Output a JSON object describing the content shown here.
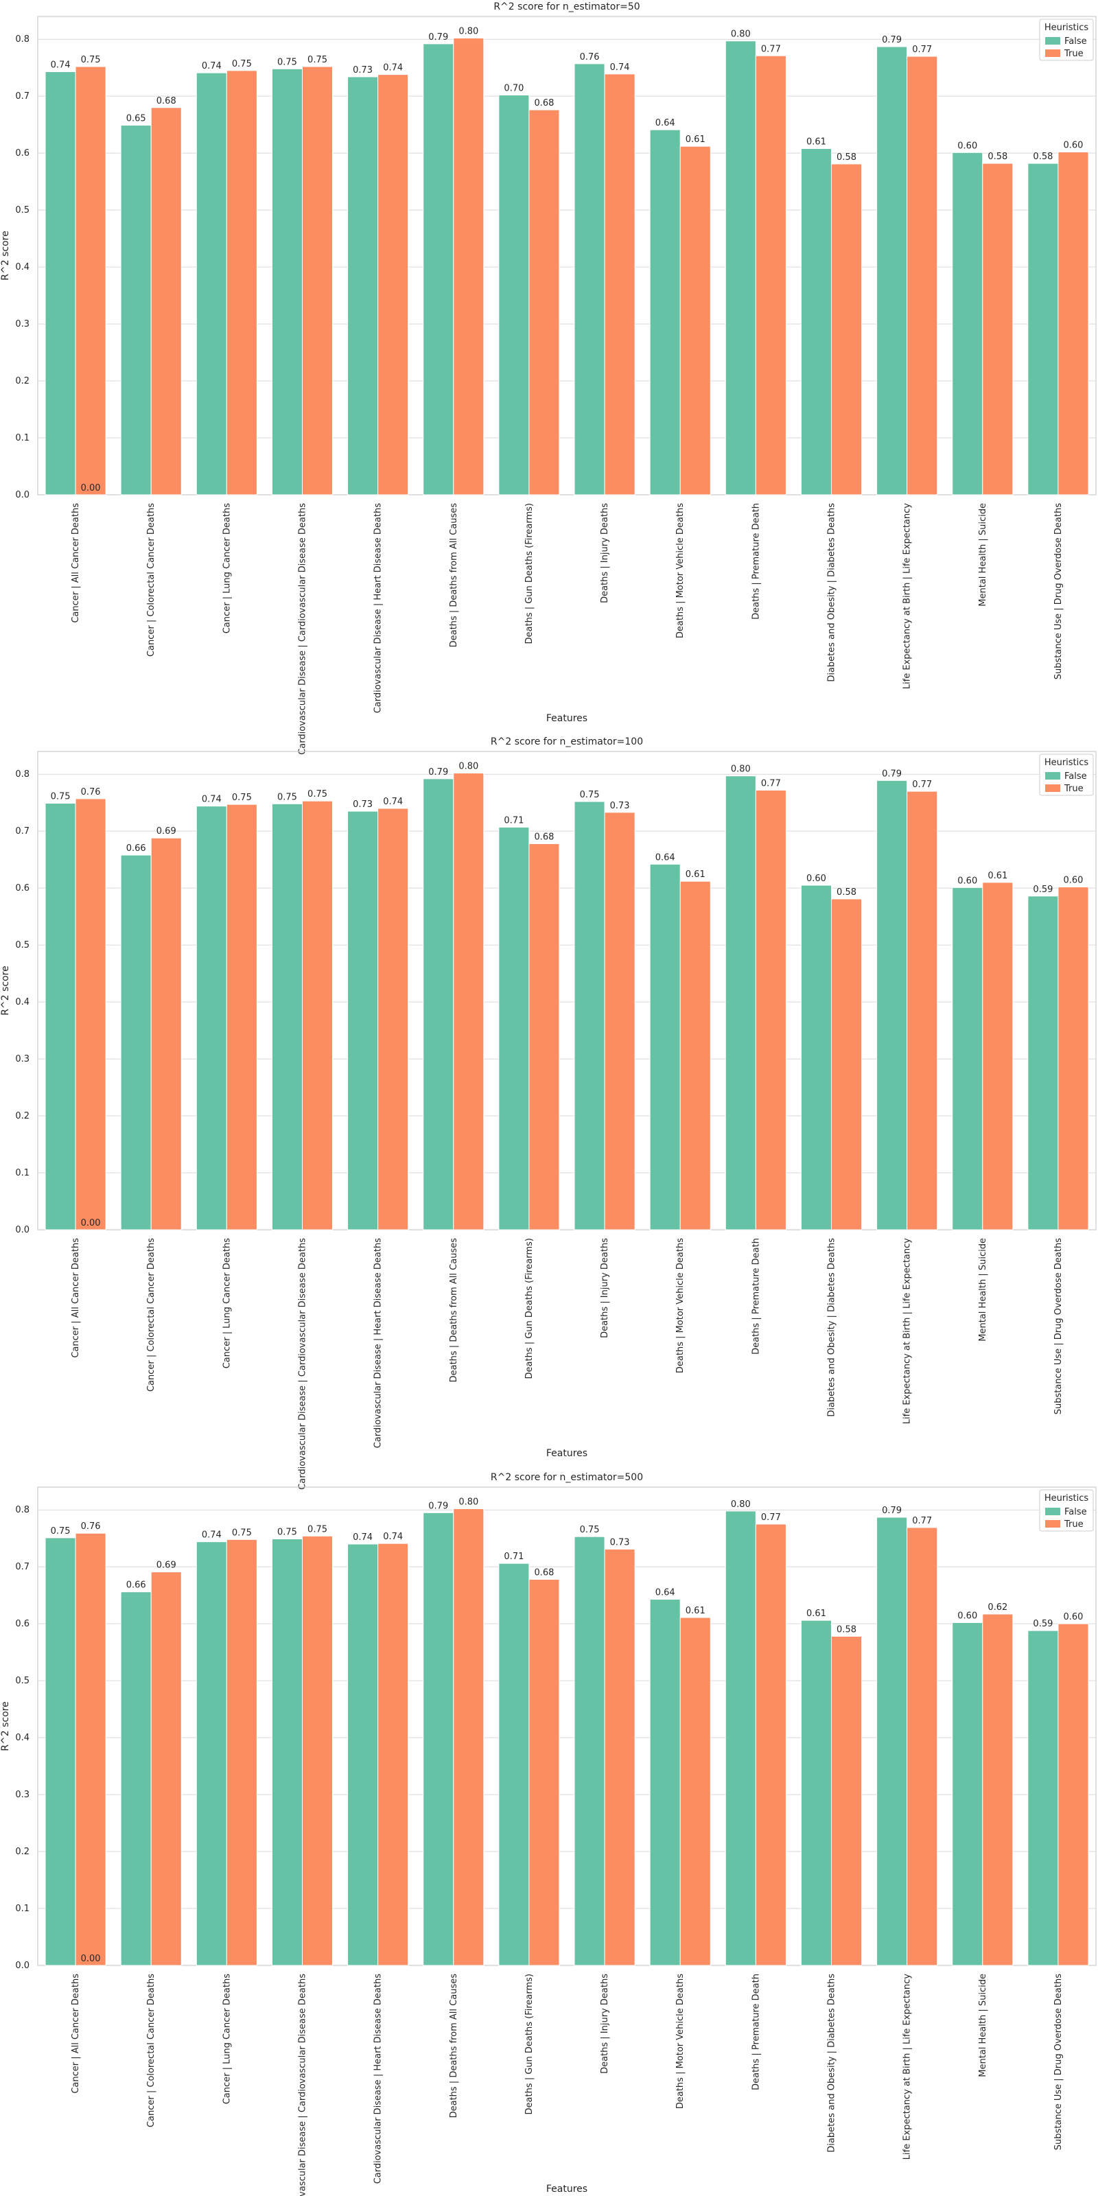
{
  "colors": {
    "False": "#66c2a5",
    "True": "#fc8d62",
    "grid": "#d9d9d9",
    "frame": "#cccccc"
  },
  "chart_data": [
    {
      "type": "bar",
      "title": "R^2 score for n_estimator=50",
      "xlabel": "Features",
      "ylabel": "R^2 score",
      "ylim": [
        0,
        0.84
      ],
      "yticks": [
        "0.0",
        "0.1",
        "0.2",
        "0.3",
        "0.4",
        "0.5",
        "0.6",
        "0.7",
        "0.8"
      ],
      "grid": true,
      "legend": {
        "title": "Heuristics",
        "placement": "top-right"
      },
      "categories": [
        "Cancer | All Cancer Deaths",
        "Cancer | Colorectal Cancer Deaths",
        "Cancer | Lung Cancer Deaths",
        "Cardiovascular Disease | Cardiovascular Disease Deaths",
        "Cardiovascular Disease | Heart Disease Deaths",
        "Deaths | Deaths from All Causes",
        "Deaths | Gun Deaths (Firearms)",
        "Deaths | Injury Deaths",
        "Deaths | Motor Vehicle Deaths",
        "Deaths | Premature Death",
        "Diabetes and Obesity | Diabetes Deaths",
        "Life Expectancy at Birth | Life Expectancy",
        "Mental Health | Suicide",
        "Substance Use | Drug Overdose Deaths"
      ],
      "series": [
        {
          "name": "False",
          "values": [
            0.743,
            0.649,
            0.741,
            0.748,
            0.734,
            0.792,
            0.702,
            0.757,
            0.641,
            0.797,
            0.608,
            0.787,
            0.601,
            0.582
          ],
          "labels": [
            "0.74",
            "0.65",
            "0.74",
            "0.75",
            "0.73",
            "0.79",
            "0.70",
            "0.76",
            "0.64",
            "0.80",
            "0.61",
            "0.79",
            "0.60",
            "0.58"
          ]
        },
        {
          "name": "True",
          "values": [
            0.752,
            0.68,
            0.745,
            0.752,
            0.738,
            0.802,
            0.676,
            0.739,
            0.612,
            0.771,
            0.581,
            0.77,
            0.582,
            0.602
          ],
          "labels": [
            "0.75",
            "0.68",
            "0.75",
            "0.75",
            "0.74",
            "0.80",
            "0.68",
            "0.74",
            "0.61",
            "0.77",
            "0.58",
            "0.77",
            "0.58",
            "0.60"
          ]
        }
      ],
      "extra_labels": [
        "0.00"
      ]
    },
    {
      "type": "bar",
      "title": "R^2 score for n_estimator=100",
      "xlabel": "Features",
      "ylabel": "R^2 score",
      "ylim": [
        0,
        0.84
      ],
      "yticks": [
        "0.0",
        "0.1",
        "0.2",
        "0.3",
        "0.4",
        "0.5",
        "0.6",
        "0.7",
        "0.8"
      ],
      "grid": true,
      "legend": {
        "title": "Heuristics",
        "placement": "top-right"
      },
      "categories": [
        "Cancer | All Cancer Deaths",
        "Cancer | Colorectal Cancer Deaths",
        "Cancer | Lung Cancer Deaths",
        "Cardiovascular Disease | Cardiovascular Disease Deaths",
        "Cardiovascular Disease | Heart Disease Deaths",
        "Deaths | Deaths from All Causes",
        "Deaths | Gun Deaths (Firearms)",
        "Deaths | Injury Deaths",
        "Deaths | Motor Vehicle Deaths",
        "Deaths | Premature Death",
        "Diabetes and Obesity | Diabetes Deaths",
        "Life Expectancy at Birth | Life Expectancy",
        "Mental Health | Suicide",
        "Substance Use | Drug Overdose Deaths"
      ],
      "series": [
        {
          "name": "False",
          "values": [
            0.749,
            0.658,
            0.744,
            0.748,
            0.735,
            0.792,
            0.707,
            0.752,
            0.642,
            0.797,
            0.605,
            0.789,
            0.601,
            0.586
          ],
          "labels": [
            "0.75",
            "0.66",
            "0.74",
            "0.75",
            "0.73",
            "0.79",
            "0.71",
            "0.75",
            "0.64",
            "0.80",
            "0.60",
            "0.79",
            "0.60",
            "0.59"
          ]
        },
        {
          "name": "True",
          "values": [
            0.757,
            0.688,
            0.747,
            0.753,
            0.74,
            0.802,
            0.678,
            0.733,
            0.612,
            0.772,
            0.581,
            0.77,
            0.61,
            0.602
          ],
          "labels": [
            "0.76",
            "0.69",
            "0.75",
            "0.75",
            "0.74",
            "0.80",
            "0.68",
            "0.73",
            "0.61",
            "0.77",
            "0.58",
            "0.77",
            "0.61",
            "0.60"
          ]
        }
      ],
      "extra_labels": [
        "0.00"
      ]
    },
    {
      "type": "bar",
      "title": "R^2 score for n_estimator=500",
      "xlabel": "Features",
      "ylabel": "R^2 score",
      "ylim": [
        0,
        0.84
      ],
      "yticks": [
        "0.0",
        "0.1",
        "0.2",
        "0.3",
        "0.4",
        "0.5",
        "0.6",
        "0.7",
        "0.8"
      ],
      "grid": true,
      "legend": {
        "title": "Heuristics",
        "placement": "top-right"
      },
      "categories": [
        "Cancer | All Cancer Deaths",
        "Cancer | Colorectal Cancer Deaths",
        "Cancer | Lung Cancer Deaths",
        "Cardiovascular Disease | Cardiovascular Disease Deaths",
        "Cardiovascular Disease | Heart Disease Deaths",
        "Deaths | Deaths from All Causes",
        "Deaths | Gun Deaths (Firearms)",
        "Deaths | Injury Deaths",
        "Deaths | Motor Vehicle Deaths",
        "Deaths | Premature Death",
        "Diabetes and Obesity | Diabetes Deaths",
        "Life Expectancy at Birth | Life Expectancy",
        "Mental Health | Suicide",
        "Substance Use | Drug Overdose Deaths"
      ],
      "series": [
        {
          "name": "False",
          "values": [
            0.751,
            0.656,
            0.744,
            0.749,
            0.74,
            0.795,
            0.706,
            0.753,
            0.643,
            0.798,
            0.606,
            0.787,
            0.602,
            0.588
          ],
          "labels": [
            "0.75",
            "0.66",
            "0.74",
            "0.75",
            "0.74",
            "0.79",
            "0.71",
            "0.75",
            "0.64",
            "0.80",
            "0.61",
            "0.79",
            "0.60",
            "0.59"
          ]
        },
        {
          "name": "True",
          "values": [
            0.759,
            0.691,
            0.748,
            0.754,
            0.741,
            0.802,
            0.678,
            0.731,
            0.611,
            0.775,
            0.578,
            0.769,
            0.617,
            0.6
          ],
          "labels": [
            "0.76",
            "0.69",
            "0.75",
            "0.75",
            "0.74",
            "0.80",
            "0.68",
            "0.73",
            "0.61",
            "0.77",
            "0.58",
            "0.77",
            "0.62",
            "0.60"
          ]
        }
      ],
      "extra_labels": [
        "0.00"
      ]
    }
  ]
}
